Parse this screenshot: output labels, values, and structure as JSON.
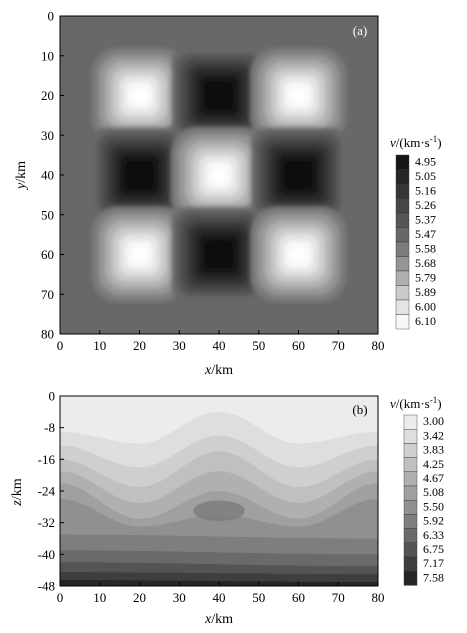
{
  "chart_data": [
    {
      "type": "heatmap",
      "panel_label": "(a)",
      "xlabel_var": "x",
      "xlabel_unit": "/km",
      "ylabel_var": "y",
      "ylabel_unit": "/km",
      "xlim": [
        0,
        80
      ],
      "ylim": [
        0,
        80
      ],
      "y_inverted": true,
      "xticks": [
        0,
        10,
        20,
        30,
        40,
        50,
        60,
        70,
        80
      ],
      "yticks": [
        0,
        10,
        20,
        30,
        40,
        50,
        60,
        70,
        80
      ],
      "colorbar": {
        "title_var": "v",
        "title_unit": "/(km·s",
        "title_exp": "-1",
        "title_close": ")",
        "levels": [
          "4.95",
          "5.05",
          "5.16",
          "5.26",
          "5.37",
          "5.47",
          "5.58",
          "5.68",
          "5.79",
          "5.89",
          "6.00",
          "6.10"
        ],
        "colors": [
          "#161616",
          "#262626",
          "#363636",
          "#464646",
          "#565656",
          "#686868",
          "#7c7c7c",
          "#959595",
          "#b0b0b0",
          "#cbcbcb",
          "#e4e4e4",
          "#f8f8f8"
        ]
      },
      "background_value": 5.47,
      "anomalies": [
        {
          "x": 20,
          "y": 20,
          "value": 6.1
        },
        {
          "x": 40,
          "y": 20,
          "value": 4.95
        },
        {
          "x": 60,
          "y": 20,
          "value": 6.1
        },
        {
          "x": 20,
          "y": 40,
          "value": 4.95
        },
        {
          "x": 40,
          "y": 40,
          "value": 6.1
        },
        {
          "x": 60,
          "y": 40,
          "value": 4.95
        },
        {
          "x": 20,
          "y": 60,
          "value": 6.1
        },
        {
          "x": 40,
          "y": 60,
          "value": 4.95
        },
        {
          "x": 60,
          "y": 60,
          "value": 6.1
        }
      ]
    },
    {
      "type": "heatmap",
      "panel_label": "(b)",
      "xlabel_var": "x",
      "xlabel_unit": "/km",
      "ylabel_var": "z",
      "ylabel_unit": "/km",
      "xlim": [
        0,
        80
      ],
      "ylim": [
        -48,
        0
      ],
      "xticks": [
        0,
        10,
        20,
        30,
        40,
        50,
        60,
        70,
        80
      ],
      "yticks": [
        0,
        -8,
        -16,
        -24,
        -32,
        -40,
        -48
      ],
      "colorbar": {
        "title_var": "v",
        "title_unit": "/(km·s",
        "title_exp": "-1",
        "title_close": ")",
        "levels": [
          "3.00",
          "3.42",
          "3.83",
          "4.25",
          "4.67",
          "5.08",
          "5.50",
          "5.92",
          "6.33",
          "6.75",
          "7.17",
          "7.58"
        ],
        "colors": [
          "#ececec",
          "#dedede",
          "#cfcfcf",
          "#c0c0c0",
          "#b0b0b0",
          "#a0a0a0",
          "#909090",
          "#7e7e7e",
          "#6a6a6a",
          "#545454",
          "#3e3e3e",
          "#262626"
        ]
      },
      "interfaces_depth_km": [
        {
          "x": [
            0,
            20,
            40,
            60,
            80
          ],
          "z": [
            -9,
            -12,
            -4,
            -12,
            -9
          ]
        },
        {
          "x": [
            0,
            20,
            40,
            60,
            80
          ],
          "z": [
            -12.5,
            -18,
            -10,
            -18,
            -12.5
          ]
        },
        {
          "x": [
            0,
            20,
            40,
            60,
            80
          ],
          "z": [
            -16,
            -23,
            -14,
            -23,
            -16
          ]
        },
        {
          "x": [
            0,
            20,
            40,
            60,
            80
          ],
          "z": [
            -19,
            -27,
            -19,
            -27,
            -19
          ]
        },
        {
          "x": [
            0,
            20,
            40,
            60,
            80
          ],
          "z": [
            -22,
            -31,
            -24,
            -31,
            -22
          ]
        },
        {
          "x": [
            0,
            20,
            40,
            60,
            80
          ],
          "z": [
            -26,
            -33,
            -30,
            -33,
            -26
          ]
        },
        {
          "x": [
            0,
            80
          ],
          "z": [
            -35,
            -36
          ]
        },
        {
          "x": [
            0,
            80
          ],
          "z": [
            -39,
            -40
          ]
        },
        {
          "x": [
            0,
            80
          ],
          "z": [
            -42,
            -43
          ]
        },
        {
          "x": [
            0,
            80
          ],
          "z": [
            -44.5,
            -45
          ]
        },
        {
          "x": [
            0,
            80
          ],
          "z": [
            -46.5,
            -47
          ]
        }
      ],
      "lens": {
        "x": 40,
        "z": -29,
        "value": 5.92
      }
    }
  ]
}
